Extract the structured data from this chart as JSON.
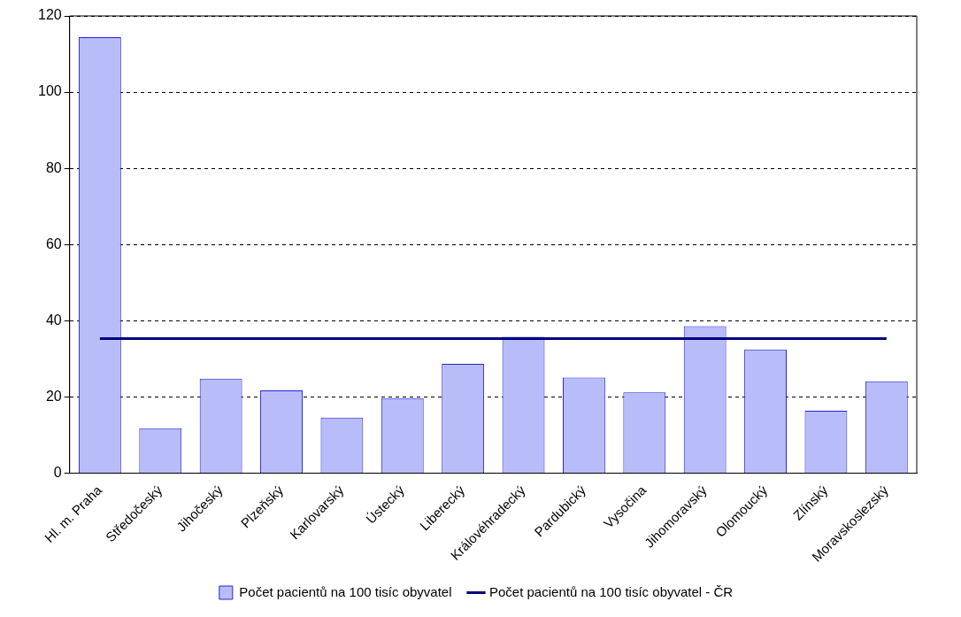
{
  "chart_data": {
    "type": "bar",
    "categories": [
      "Hl. m. Praha",
      "Středočeský",
      "Jihočeský",
      "Plzeňský",
      "Karlovarský",
      "Ústecký",
      "Liberecký",
      "Královéhradecký",
      "Pardubický",
      "Vysočina",
      "Jihomoravský",
      "Olomoucký",
      "Zlínský",
      "Moravskoslezský"
    ],
    "series": [
      {
        "name": "Počet pacientů na 100 tisíc obyvatel",
        "color": "#b8bcf8",
        "values": [
          114.4,
          11.8,
          24.8,
          21.7,
          14.6,
          19.7,
          28.7,
          35.8,
          25.1,
          21.2,
          38.6,
          32.5,
          16.4,
          24.1
        ]
      },
      {
        "name": "Počet pacientů na 100 tisíc obyvatel - ČR",
        "type": "line",
        "color": "#000080",
        "values": [
          35.3,
          35.3,
          35.3,
          35.3,
          35.3,
          35.3,
          35.3,
          35.3,
          35.3,
          35.3,
          35.3,
          35.3,
          35.3,
          35.3
        ]
      }
    ],
    "ylim": [
      0,
      120
    ],
    "yticks": [
      0,
      20,
      40,
      60,
      80,
      100,
      120
    ],
    "grid": "y",
    "legend": "bottom",
    "marker": "none"
  }
}
